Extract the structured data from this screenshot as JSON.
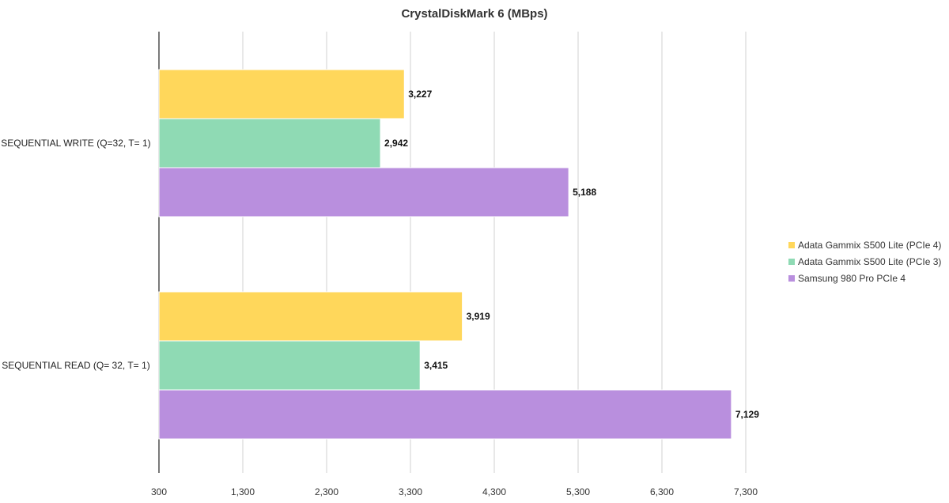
{
  "chart_data": {
    "type": "bar",
    "orientation": "horizontal",
    "title": "CrystalDiskMark 6 (MBps)",
    "categories": [
      "SEQUENTIAL WRITE (Q=32, T= 1)",
      "SEQUENTIAL READ (Q= 32, T= 1)"
    ],
    "series": [
      {
        "name": "Adata Gammix S500 Lite (PCIe 4)",
        "values": [
          3227,
          3919
        ],
        "labels": [
          "3,227",
          "3,919"
        ],
        "color": "#FFD75B"
      },
      {
        "name": "Adata Gammix S500 Lite (PCIe 3)",
        "values": [
          2942,
          3415
        ],
        "labels": [
          "2,942",
          "3,415"
        ],
        "color": "#8FDAB4"
      },
      {
        "name": "Samsung 980 Pro PCIe 4",
        "values": [
          5188,
          7129
        ],
        "labels": [
          "5,188",
          "7,129"
        ],
        "color": "#B98FDE"
      }
    ],
    "xlim": [
      300,
      7300
    ],
    "xticks": [
      300,
      1300,
      2300,
      3300,
      4300,
      5300,
      6300,
      7300
    ],
    "xtick_labels": [
      "300",
      "1,300",
      "2,300",
      "3,300",
      "4,300",
      "5,300",
      "6,300",
      "7,300"
    ],
    "grid": true,
    "legend_position": "right"
  }
}
